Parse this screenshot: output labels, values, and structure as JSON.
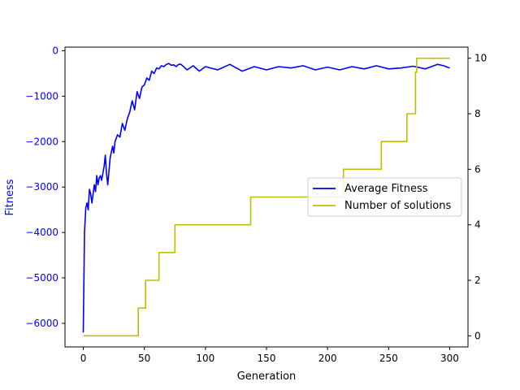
{
  "chart_data": {
    "type": "line",
    "title": "",
    "xlabel": "Generation",
    "ylabel": "Fitness",
    "ylabel_color": "#0000ff",
    "xlim": [
      -15,
      315
    ],
    "ylim": [
      -6520,
      80
    ],
    "y2lim": [
      -0.4,
      10.4
    ],
    "x_ticks": [
      0,
      50,
      100,
      150,
      200,
      250,
      300
    ],
    "y_ticks": [
      0,
      -1000,
      -2000,
      -3000,
      -4000,
      -5000,
      -6000
    ],
    "y_tick_labels": [
      "0",
      "−1000",
      "−2000",
      "−3000",
      "−4000",
      "−5000",
      "−6000"
    ],
    "y2_ticks": [
      0,
      2,
      4,
      6,
      8,
      10
    ],
    "grid": false,
    "legend_position": "center-right",
    "series": [
      {
        "name": "Average Fitness",
        "axis": "left",
        "color": "#0000ff",
        "x": [
          0,
          1,
          2,
          3,
          4,
          5,
          6,
          7,
          8,
          9,
          10,
          11,
          12,
          13,
          14,
          15,
          16,
          17,
          18,
          19,
          20,
          22,
          24,
          25,
          26,
          28,
          30,
          32,
          34,
          36,
          38,
          40,
          42,
          44,
          46,
          48,
          50,
          52,
          54,
          56,
          58,
          60,
          62,
          64,
          66,
          68,
          70,
          72,
          74,
          76,
          78,
          80,
          85,
          90,
          95,
          100,
          110,
          120,
          130,
          140,
          150,
          160,
          170,
          180,
          190,
          200,
          210,
          220,
          230,
          240,
          250,
          260,
          270,
          280,
          290,
          295,
          300
        ],
        "y": [
          -6200,
          -4000,
          -3450,
          -3350,
          -3500,
          -3050,
          -3150,
          -3350,
          -3150,
          -2950,
          -3100,
          -2750,
          -2950,
          -2800,
          -2750,
          -2850,
          -2700,
          -2550,
          -2300,
          -2700,
          -2950,
          -2350,
          -2100,
          -2250,
          -2000,
          -1850,
          -1900,
          -1600,
          -1750,
          -1500,
          -1350,
          -1100,
          -1300,
          -900,
          -1050,
          -800,
          -750,
          -600,
          -650,
          -450,
          -500,
          -380,
          -400,
          -330,
          -350,
          -300,
          -280,
          -320,
          -310,
          -350,
          -300,
          -300,
          -420,
          -330,
          -450,
          -350,
          -420,
          -300,
          -450,
          -350,
          -420,
          -350,
          -380,
          -330,
          -420,
          -360,
          -420,
          -350,
          -400,
          -330,
          -400,
          -380,
          -340,
          -400,
          -300,
          -330,
          -380
        ]
      },
      {
        "name": "Number of solutions",
        "axis": "right",
        "color": "#bfbf00",
        "x": [
          0,
          45,
          45,
          51,
          51,
          62,
          62,
          75,
          75,
          137,
          137,
          213,
          213,
          244,
          244,
          265,
          265,
          272,
          272,
          273,
          273,
          300
        ],
        "y": [
          0,
          0,
          1,
          1,
          2,
          2,
          3,
          3,
          4,
          4,
          5,
          5,
          6,
          6,
          7,
          7,
          8,
          8,
          9.5,
          9.5,
          10,
          10
        ]
      }
    ]
  }
}
